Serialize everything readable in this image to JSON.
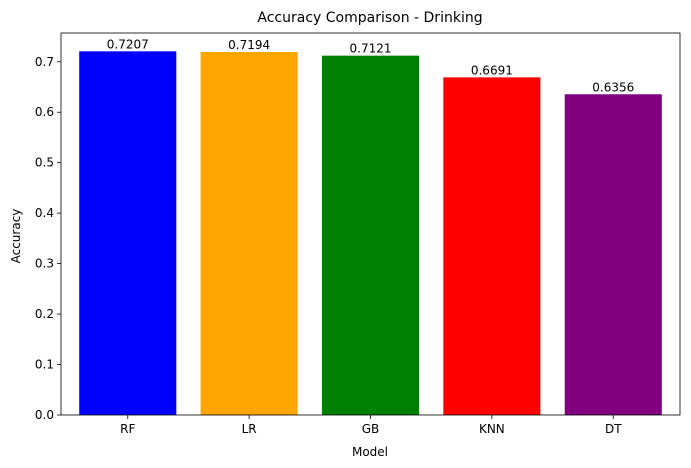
{
  "chart_data": {
    "type": "bar",
    "title": "Accuracy Comparison - Drinking",
    "xlabel": "Model",
    "ylabel": "Accuracy",
    "categories": [
      "RF",
      "LR",
      "GB",
      "KNN",
      "DT"
    ],
    "values": [
      0.7207,
      0.7194,
      0.7121,
      0.6691,
      0.6356
    ],
    "value_labels": [
      "0.7207",
      "0.7194",
      "0.7121",
      "0.6691",
      "0.6356"
    ],
    "colors": [
      "#0000ff",
      "#ffa500",
      "#008000",
      "#ff0000",
      "#800080"
    ],
    "ylim": [
      0,
      0.757
    ],
    "yticks": [
      0.0,
      0.1,
      0.2,
      0.3,
      0.4,
      0.5,
      0.6,
      0.7
    ],
    "ytick_labels": [
      "0.0",
      "0.1",
      "0.2",
      "0.3",
      "0.4",
      "0.5",
      "0.6",
      "0.7"
    ],
    "grid": false,
    "legend": "none"
  }
}
